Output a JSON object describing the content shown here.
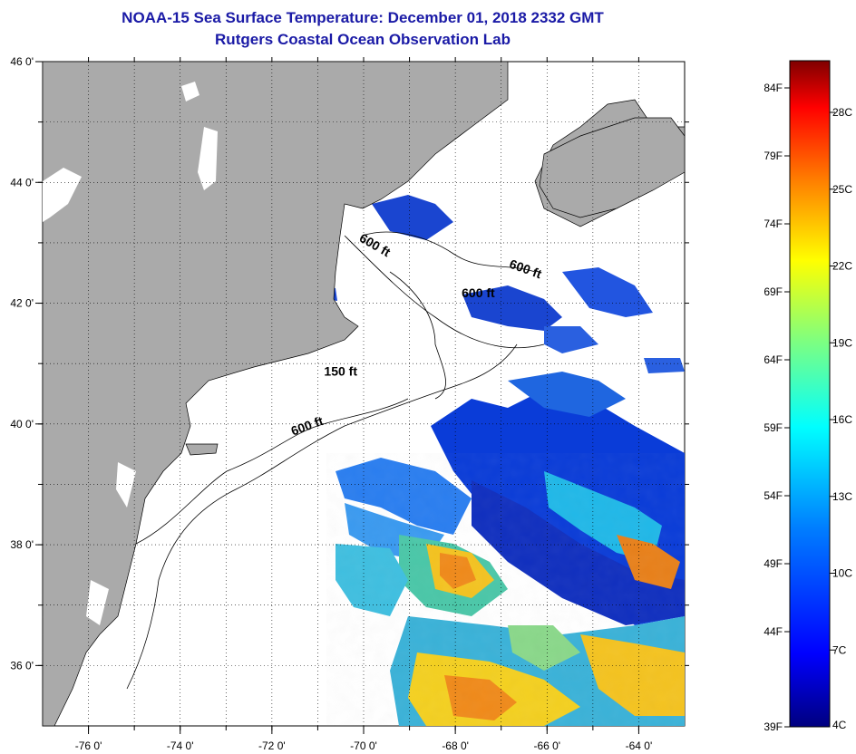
{
  "title": {
    "line1": "NOAA-15 Sea Surface Temperature:  December 01, 2018 2332 GMT",
    "line2": "Rutgers Coastal Ocean Observation Lab"
  },
  "map": {
    "lat_range": [
      35,
      46
    ],
    "lon_range": [
      -77,
      -63
    ],
    "lat_ticks": [
      {
        "value": 46,
        "label": "46 0'"
      },
      {
        "value": 44,
        "label": "44 0'"
      },
      {
        "value": 42,
        "label": "42 0'"
      },
      {
        "value": 40,
        "label": "40 0'"
      },
      {
        "value": 38,
        "label": "38 0'"
      },
      {
        "value": 36,
        "label": "36 0'"
      }
    ],
    "lon_ticks": [
      {
        "value": -76,
        "label": "-76 0'"
      },
      {
        "value": -74,
        "label": "-74 0'"
      },
      {
        "value": -72,
        "label": "-72 0'"
      },
      {
        "value": -70,
        "label": "-70 0'"
      },
      {
        "value": -68,
        "label": "-68 0'"
      },
      {
        "value": -66,
        "label": "-66 0'"
      },
      {
        "value": -64,
        "label": "-64 0'"
      }
    ],
    "contour_labels": [
      {
        "text": "600 ft",
        "lon": -69.8,
        "lat": 42.9
      },
      {
        "text": "600 ft",
        "lon": -66.5,
        "lat": 42.5
      },
      {
        "text": "600 ft",
        "lon": -67.5,
        "lat": 42.1
      },
      {
        "text": "150 ft",
        "lon": -70.5,
        "lat": 40.8
      },
      {
        "text": "600 ft",
        "lon": -71.2,
        "lat": 39.9
      }
    ],
    "colors": {
      "land": "#aaaaaa",
      "ocean": "#ffffff",
      "frame": "#000000"
    }
  },
  "colorbar": {
    "fahrenheit": [
      "84F",
      "79F",
      "74F",
      "69F",
      "64F",
      "59F",
      "54F",
      "49F",
      "44F",
      "39F"
    ],
    "celsius": [
      "28C",
      "25C",
      "22C",
      "19C",
      "16C",
      "13C",
      "10C",
      "7C",
      "4C"
    ],
    "colors": [
      "#00007f",
      "#0000ff",
      "#007fff",
      "#00ffff",
      "#7fff7f",
      "#ffff00",
      "#ff7f00",
      "#ff0000",
      "#7f0000"
    ]
  }
}
